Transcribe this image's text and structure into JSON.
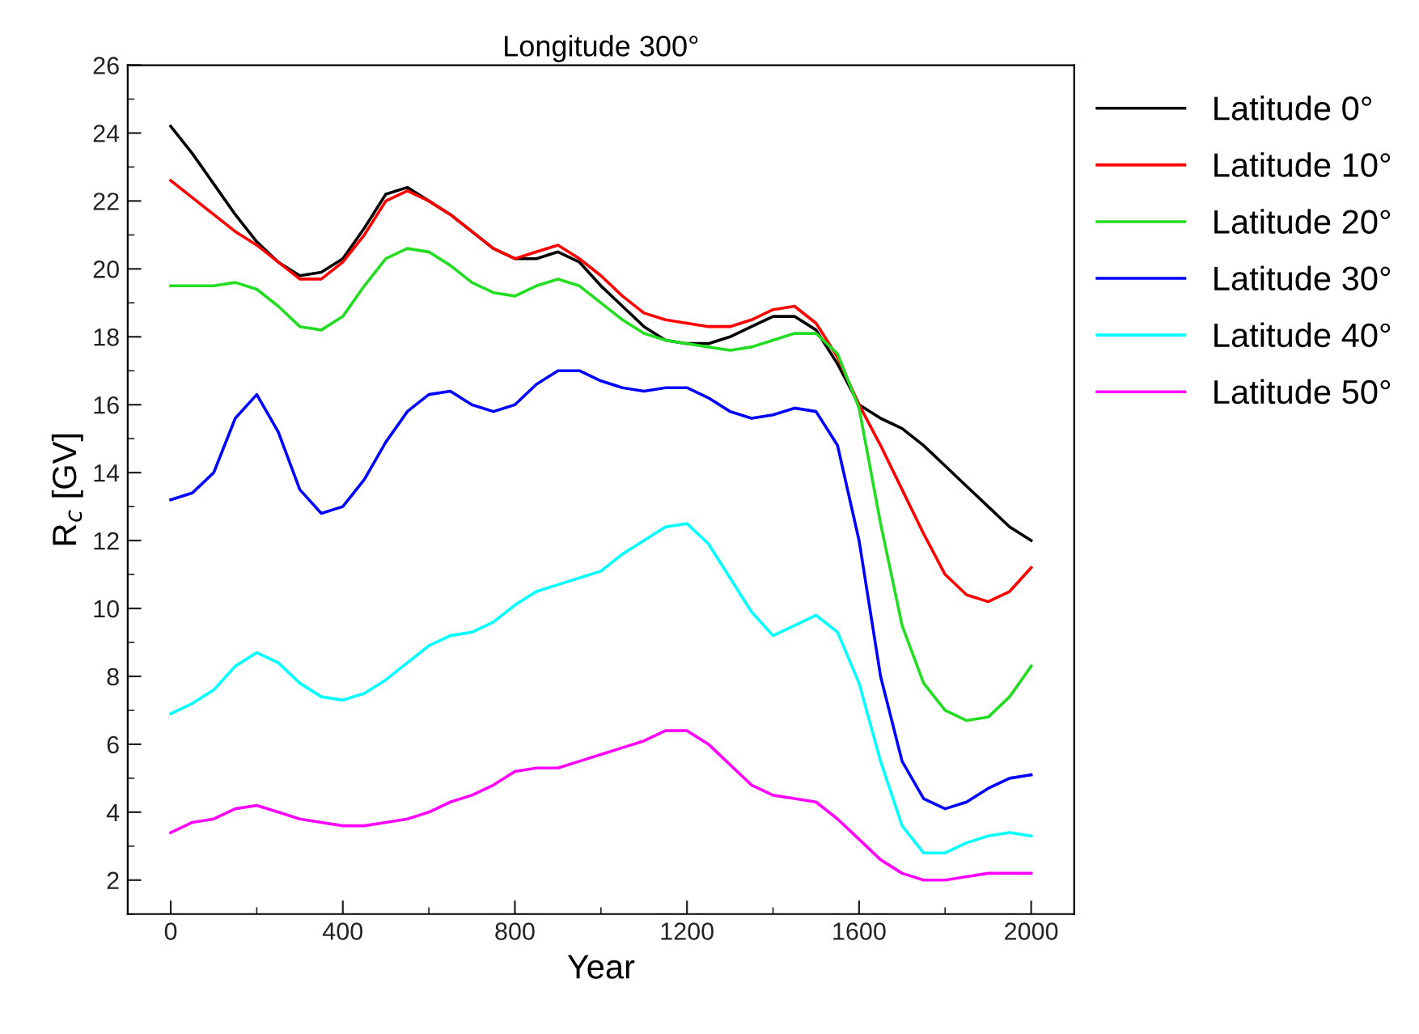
{
  "chart_data": {
    "type": "line",
    "title": "Longitude 300°",
    "xlabel": "Year",
    "ylabel": "R$_{c}$ [GV]",
    "xlim": [
      -100,
      2100
    ],
    "xticks": [
      0,
      400,
      800,
      1200,
      1600,
      2000
    ],
    "ylim": [
      1,
      26
    ],
    "yticks": [
      2,
      4,
      6,
      8,
      10,
      12,
      14,
      16,
      18,
      20,
      22,
      24,
      26
    ],
    "grid": false,
    "legend": "right",
    "marker": "none",
    "line_style": "solid",
    "x": [
      0,
      50,
      100,
      150,
      200,
      250,
      300,
      350,
      400,
      450,
      500,
      550,
      600,
      650,
      700,
      750,
      800,
      850,
      900,
      950,
      1000,
      1050,
      1100,
      1150,
      1200,
      1250,
      1300,
      1350,
      1400,
      1450,
      1500,
      1550,
      1600,
      1650,
      1700,
      1750,
      1800,
      1850,
      1900,
      1950,
      2000
    ],
    "series": [
      {
        "name": "Latitude 0°",
        "color": "#000000",
        "values": [
          24.2,
          23.4,
          22.5,
          21.6,
          20.8,
          20.2,
          19.8,
          19.9,
          20.3,
          21.2,
          22.2,
          22.4,
          22.0,
          21.6,
          21.1,
          20.6,
          20.3,
          20.3,
          20.5,
          20.2,
          19.5,
          18.9,
          18.3,
          17.9,
          17.8,
          17.8,
          18.0,
          18.3,
          18.6,
          18.6,
          18.2,
          17.2,
          16.0,
          15.6,
          15.3,
          14.8,
          14.2,
          13.6,
          13.0,
          12.4,
          12.0
        ]
      },
      {
        "name": "Latitude 10°",
        "color": "#ff0000",
        "values": [
          22.6,
          22.1,
          21.6,
          21.1,
          20.7,
          20.2,
          19.7,
          19.7,
          20.2,
          21.0,
          22.0,
          22.3,
          22.0,
          21.6,
          21.1,
          20.6,
          20.3,
          20.5,
          20.7,
          20.3,
          19.8,
          19.2,
          18.7,
          18.5,
          18.4,
          18.3,
          18.3,
          18.5,
          18.8,
          18.9,
          18.4,
          17.4,
          16.0,
          14.8,
          13.5,
          12.2,
          11.0,
          10.4,
          10.2,
          10.5,
          11.2
        ]
      },
      {
        "name": "Latitude 20°",
        "color": "#22dd22",
        "values": [
          19.5,
          19.5,
          19.5,
          19.6,
          19.4,
          18.9,
          18.3,
          18.2,
          18.6,
          19.5,
          20.3,
          20.6,
          20.5,
          20.1,
          19.6,
          19.3,
          19.2,
          19.5,
          19.7,
          19.5,
          19.0,
          18.5,
          18.1,
          17.9,
          17.8,
          17.7,
          17.6,
          17.7,
          17.9,
          18.1,
          18.1,
          17.5,
          15.9,
          12.5,
          9.5,
          7.8,
          7.0,
          6.7,
          6.8,
          7.4,
          8.3
        ]
      },
      {
        "name": "Latitude 30°",
        "color": "#0000ff",
        "values": [
          13.2,
          13.4,
          14.0,
          15.6,
          16.3,
          15.2,
          13.5,
          12.8,
          13.0,
          13.8,
          14.9,
          15.8,
          16.3,
          16.4,
          16.0,
          15.8,
          16.0,
          16.6,
          17.0,
          17.0,
          16.7,
          16.5,
          16.4,
          16.5,
          16.5,
          16.2,
          15.8,
          15.6,
          15.7,
          15.9,
          15.8,
          14.8,
          12.0,
          8.0,
          5.5,
          4.4,
          4.1,
          4.3,
          4.7,
          5.0,
          5.1
        ]
      },
      {
        "name": "Latitude 40°",
        "color": "#00ffff",
        "values": [
          6.9,
          7.2,
          7.6,
          8.3,
          8.7,
          8.4,
          7.8,
          7.4,
          7.3,
          7.5,
          7.9,
          8.4,
          8.9,
          9.2,
          9.3,
          9.6,
          10.1,
          10.5,
          10.7,
          10.9,
          11.1,
          11.6,
          12.0,
          12.4,
          12.5,
          11.9,
          10.9,
          9.9,
          9.2,
          9.5,
          9.8,
          9.3,
          7.8,
          5.5,
          3.6,
          2.8,
          2.8,
          3.1,
          3.3,
          3.4,
          3.3
        ]
      },
      {
        "name": "Latitude 50°",
        "color": "#ff00ff",
        "values": [
          3.4,
          3.7,
          3.8,
          4.1,
          4.2,
          4.0,
          3.8,
          3.7,
          3.6,
          3.6,
          3.7,
          3.8,
          4.0,
          4.3,
          4.5,
          4.8,
          5.2,
          5.3,
          5.3,
          5.5,
          5.7,
          5.9,
          6.1,
          6.4,
          6.4,
          6.0,
          5.4,
          4.8,
          4.5,
          4.4,
          4.3,
          3.8,
          3.2,
          2.6,
          2.2,
          2.0,
          2.0,
          2.1,
          2.2,
          2.2,
          2.2
        ]
      }
    ]
  }
}
